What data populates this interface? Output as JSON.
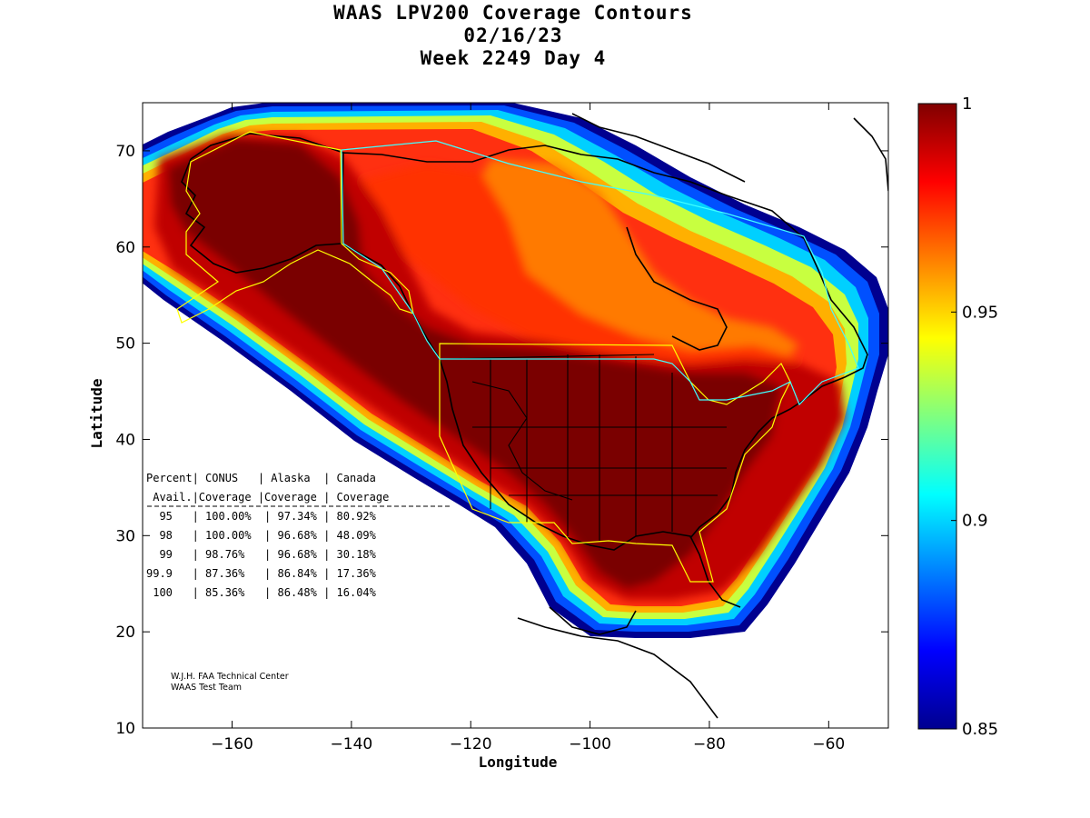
{
  "title": {
    "line1": "WAAS LPV200 Coverage Contours",
    "line2": "02/16/23",
    "line3": "Week 2249 Day 4"
  },
  "map": {
    "xlabel": "Longitude",
    "ylabel": "Latitude",
    "xlim": [
      -175,
      -50
    ],
    "ylim": [
      10,
      75
    ],
    "x_ticks": [
      -160,
      -140,
      -120,
      -100,
      -80,
      -60
    ],
    "y_ticks": [
      10,
      20,
      30,
      40,
      50,
      60,
      70
    ],
    "colorbar": {
      "min": 0.85,
      "max": 1,
      "ticks": [
        {
          "value": 1,
          "label": "1"
        },
        {
          "value": 0.95,
          "label": "0.95"
        },
        {
          "value": 0.9,
          "label": "0.9"
        },
        {
          "value": 0.85,
          "label": "0.85"
        }
      ]
    }
  },
  "table": {
    "header1": "Percent| CONUS   | Alaska  | Canada",
    "header2": " Avail.|Coverage |Coverage | Coverage",
    "rows": [
      "  95   | 100.00%  | 97.34% | 80.92%",
      "  98   | 100.00%  | 96.68% | 48.09%",
      "  99   | 98.76%   | 96.68% | 30.18%",
      "99.9   | 87.36%   | 86.84% | 17.36%",
      " 100   | 85.36%   | 86.48% | 16.04%"
    ]
  },
  "credit": {
    "line1": "W.J.H. FAA Technical Center",
    "line2": "WAAS Test Team"
  }
}
